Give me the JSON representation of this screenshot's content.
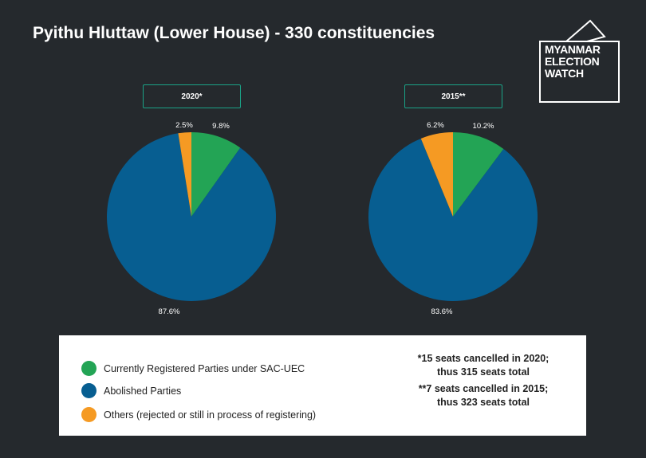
{
  "title": "Pyithu Hluttaw (Lower House) - 330 constituencies",
  "logo": {
    "text": "MYANMAR\nELECTION\nWATCH"
  },
  "colors": {
    "registered": "#23a455",
    "abolished": "#075e91",
    "others": "#f59a23",
    "background": "#25292d",
    "accent": "#1aa387"
  },
  "chart_data": [
    {
      "type": "pie",
      "title": "2020*",
      "slices": [
        {
          "label": "Currently Registered Parties under SAC-UEC",
          "value": 9.8,
          "value_label": "9.8%",
          "color": "#23a455"
        },
        {
          "label": "Abolished Parties",
          "value": 87.6,
          "value_label": "87.6%",
          "color": "#075e91"
        },
        {
          "label": "Others (rejected or still in process of registering)",
          "value": 2.5,
          "value_label": "2.5%",
          "color": "#f59a23"
        }
      ]
    },
    {
      "type": "pie",
      "title": "2015**",
      "slices": [
        {
          "label": "Currently Registered Parties under SAC-UEC",
          "value": 10.2,
          "value_label": "10.2%",
          "color": "#23a455"
        },
        {
          "label": "Abolished Parties",
          "value": 83.6,
          "value_label": "83.6%",
          "color": "#075e91"
        },
        {
          "label": "Others (rejected or still in process of registering)",
          "value": 6.2,
          "value_label": "6.2%",
          "color": "#f59a23"
        }
      ]
    }
  ],
  "legend": [
    {
      "label": "Currently Registered Parties under SAC-UEC",
      "color": "#23a455"
    },
    {
      "label": "Abolished Parties",
      "color": "#075e91"
    },
    {
      "label": "Others (rejected or still in process of registering)",
      "color": "#f59a23"
    }
  ],
  "notes": {
    "line1": "*15 seats cancelled in 2020;",
    "line2": "thus 315 seats total",
    "line3": "**7 seats cancelled in 2015;",
    "line4": "thus 323 seats total"
  }
}
